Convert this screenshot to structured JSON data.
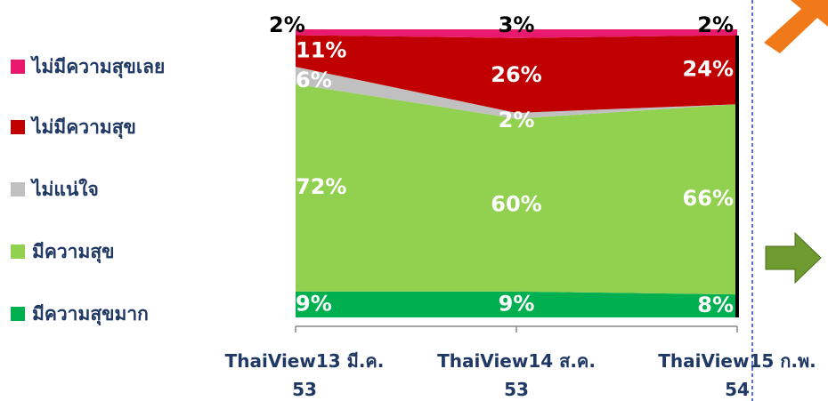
{
  "chart_data": {
    "type": "stacked_area",
    "categories": [
      "ThaiView13 มี.ค. 53",
      "ThaiView14 ส.ค. 53",
      "ThaiView15 ก.พ. 54"
    ],
    "ylim": [
      0,
      100
    ],
    "series": [
      {
        "name": "มีความสุขมาก",
        "color": "#00b050",
        "values": [
          9,
          9,
          8
        ],
        "value_labels": [
          "9%",
          "9%",
          "8%"
        ]
      },
      {
        "name": "มีความสุข",
        "color": "#92d050",
        "values": [
          72,
          60,
          66
        ],
        "value_labels": [
          "72%",
          "60%",
          "66%"
        ]
      },
      {
        "name": "ไม่แน่ใจ",
        "color": "#c0c0c0",
        "values": [
          6,
          2,
          0
        ],
        "value_labels": [
          "6%",
          "2%",
          null
        ]
      },
      {
        "name": "ไม่มีความสุข",
        "color": "#c00000",
        "values": [
          11,
          26,
          24
        ],
        "value_labels": [
          "11%",
          "26%",
          "24%"
        ]
      },
      {
        "name": "ไม่มีความสุขเลย",
        "color": "#e8196e",
        "values": [
          2,
          3,
          2
        ],
        "value_labels": [
          "2%",
          "3%",
          "2%"
        ]
      }
    ]
  }
}
